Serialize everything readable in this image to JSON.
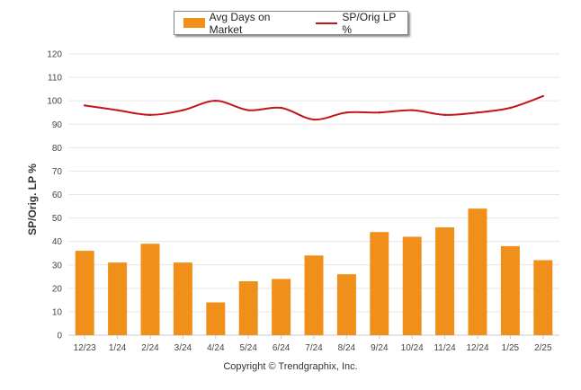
{
  "legend": {
    "bar_label": "Avg Days on Market",
    "line_label": "SP/Orig LP %"
  },
  "copyright": "Copyright © Trendgraphix, Inc.",
  "chart_data": {
    "type": "bar",
    "categories": [
      "12/23",
      "1/24",
      "2/24",
      "3/24",
      "4/24",
      "5/24",
      "6/24",
      "7/24",
      "8/24",
      "9/24",
      "10/24",
      "11/24",
      "12/24",
      "1/25",
      "2/25"
    ],
    "series": [
      {
        "name": "Avg Days on Market",
        "type": "bar",
        "color": "#f0901a",
        "values": [
          36,
          31,
          39,
          31,
          14,
          23,
          24,
          34,
          26,
          44,
          42,
          46,
          54,
          38,
          32
        ]
      },
      {
        "name": "SP/Orig LP %",
        "type": "line",
        "color": "#c0161c",
        "values": [
          98,
          96,
          94,
          96,
          100,
          96,
          97,
          92,
          95,
          95,
          96,
          94,
          95,
          97,
          102
        ]
      }
    ],
    "ylabel": "SP/Orig. LP %",
    "ylim": [
      0,
      120
    ],
    "yticks": [
      0,
      10,
      20,
      30,
      40,
      50,
      60,
      70,
      80,
      90,
      100,
      110,
      120
    ],
    "grid": true,
    "legend_position": "top-center"
  }
}
